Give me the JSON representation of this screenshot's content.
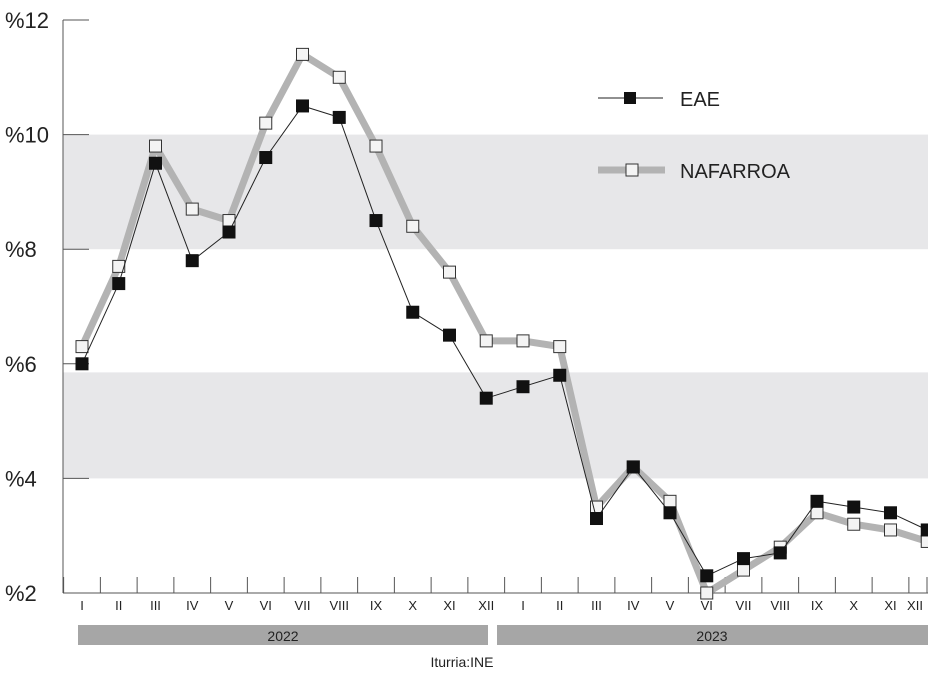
{
  "chart_data": {
    "type": "line",
    "x": [
      "I",
      "II",
      "III",
      "IV",
      "V",
      "VI",
      "VII",
      "VIII",
      "IX",
      "X",
      "XI",
      "XII",
      "I",
      "II",
      "III",
      "IV",
      "V",
      "VI",
      "VII",
      "VIII",
      "IX",
      "X",
      "XI",
      "XII"
    ],
    "years": [
      "2022",
      "2023"
    ],
    "series": [
      {
        "name": "EAE",
        "values": [
          6.0,
          7.4,
          9.5,
          7.8,
          8.3,
          9.6,
          10.5,
          10.3,
          8.5,
          6.9,
          6.5,
          5.4,
          5.6,
          5.8,
          3.3,
          4.2,
          3.4,
          2.3,
          2.6,
          2.7,
          3.6,
          3.5,
          3.4,
          3.1
        ]
      },
      {
        "name": "NAFARROA",
        "values": [
          6.3,
          7.7,
          9.8,
          8.7,
          8.5,
          10.2,
          11.4,
          11.0,
          9.8,
          8.4,
          7.6,
          6.4,
          6.4,
          6.3,
          3.5,
          4.2,
          3.6,
          2.0,
          2.4,
          2.8,
          3.4,
          3.2,
          3.1,
          2.9
        ]
      }
    ],
    "ylim": [
      2,
      12
    ],
    "yticks": [
      "%2",
      "%4",
      "%6",
      "%8",
      "%10",
      "%12"
    ],
    "yticks_values": [
      2,
      4,
      6,
      8,
      10,
      12
    ],
    "shaded_bands": [
      [
        4,
        5.85
      ],
      [
        8,
        10
      ]
    ],
    "legend_position": "top-right",
    "source": "Iturria:INE",
    "colors": {
      "eae": "#111111",
      "nafarroa": "#b3b3b3",
      "band": "#e7e7e9",
      "year_bar": "#a6a6a6"
    }
  }
}
